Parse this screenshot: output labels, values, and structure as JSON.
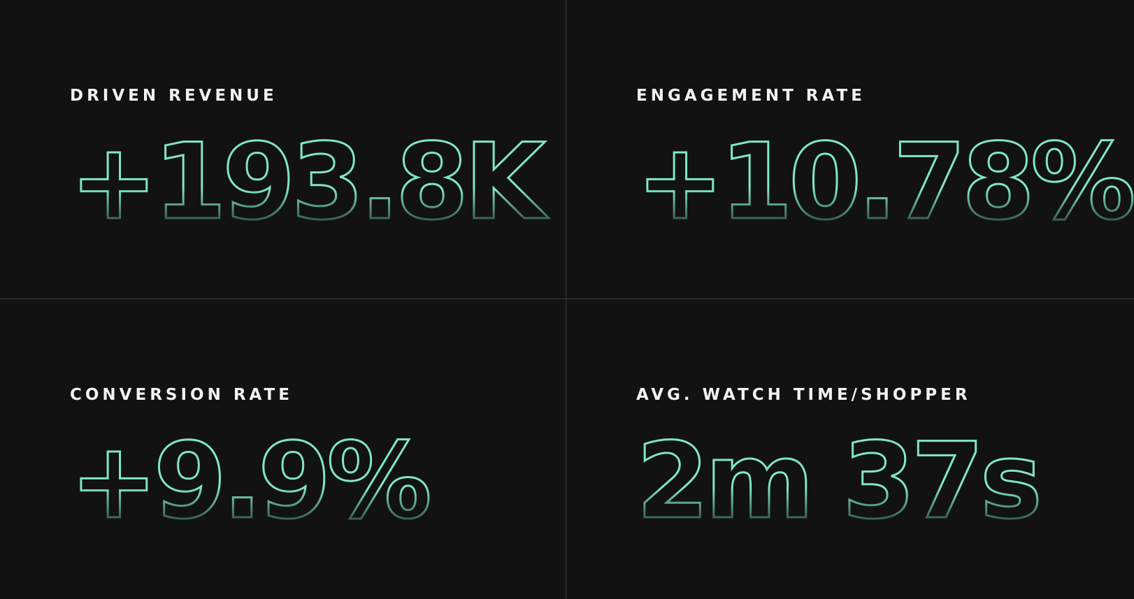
{
  "colors": {
    "background": "#121212",
    "divider": "#3a3a3a",
    "label": "#f2f2f2",
    "accent": "#7fe8c4"
  },
  "stats": [
    {
      "label": "DRIVEN REVENUE",
      "value": "+193.8K"
    },
    {
      "label": "ENGAGEMENT RATE",
      "value": "+10.78%"
    },
    {
      "label": "CONVERSION RATE",
      "value": "+9.9%"
    },
    {
      "label": "AVG. WATCH TIME/SHOPPER",
      "value": "2m 37s"
    }
  ]
}
